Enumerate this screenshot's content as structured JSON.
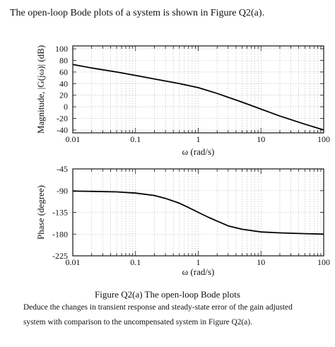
{
  "intro_text": "The open-loop Bode plots of a system is shown in Figure Q2(a).",
  "caption": "Figure Q2(a) The open-loop Bode plots",
  "question_lines": [
    "Deduce the changes in transient response and steady-state error of the gain adjusted",
    "system with comparison to the uncompensated system in Figure Q2(a)."
  ],
  "chart_data": [
    {
      "type": "line",
      "ylabel": "Magnitude, |G(jω)| (dB)",
      "xlabel": "ω (rad/s)",
      "x_scale": "log",
      "xlim": [
        0.01,
        100
      ],
      "ylim": [
        -45,
        105
      ],
      "grid": true,
      "x_tick_labels": [
        "0.01",
        "0.1",
        "1",
        "10",
        "100"
      ],
      "x_ticks": [
        0.01,
        0.1,
        1,
        10,
        100
      ],
      "y_tick_labels": [
        "100",
        "80",
        "60",
        "40",
        "20",
        "0",
        "-20",
        "-40"
      ],
      "y_ticks": [
        100,
        80,
        60,
        40,
        20,
        0,
        -20,
        -40
      ],
      "series": [
        {
          "x": [
            0.01,
            0.02,
            0.05,
            0.1,
            0.2,
            0.5,
            1,
            2,
            5,
            10,
            20,
            50,
            100
          ],
          "y": [
            73,
            67,
            60,
            54,
            48,
            40,
            33,
            23,
            8,
            -4,
            -16,
            -30,
            -40
          ]
        }
      ]
    },
    {
      "type": "line",
      "ylabel": "Phase (degree)",
      "xlabel": "ω (rad/s)",
      "x_scale": "log",
      "xlim": [
        0.01,
        100
      ],
      "ylim": [
        -225,
        -45
      ],
      "grid": true,
      "x_tick_labels": [
        "0.01",
        "0.1",
        "1",
        "10",
        "100"
      ],
      "x_ticks": [
        0.01,
        0.1,
        1,
        10,
        100
      ],
      "y_tick_labels": [
        "-45",
        "-90",
        "-135",
        "-180",
        "-225"
      ],
      "y_ticks": [
        -45,
        -90,
        -135,
        -180,
        -225
      ],
      "series": [
        {
          "x": [
            0.01,
            0.02,
            0.05,
            0.1,
            0.2,
            0.3,
            0.5,
            0.7,
            1,
            1.5,
            2,
            3,
            5,
            10,
            20,
            50,
            100
          ],
          "y": [
            -91,
            -91.5,
            -92.5,
            -95,
            -100,
            -106,
            -116,
            -125,
            -135,
            -146,
            -153,
            -163,
            -170,
            -175.5,
            -177.5,
            -179,
            -180
          ]
        }
      ]
    }
  ]
}
